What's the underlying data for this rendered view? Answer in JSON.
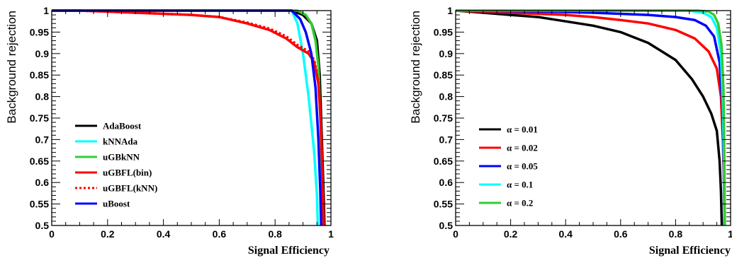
{
  "chart_data": [
    {
      "type": "line",
      "xlabel": "Signal Efficiency",
      "ylabel": "Background rejection",
      "xlim": [
        0,
        1
      ],
      "ylim": [
        0.5,
        1
      ],
      "x_ticks": [
        "0",
        "0.2",
        "0.4",
        "0.6",
        "0.8",
        "1"
      ],
      "y_ticks": [
        "0.5",
        "0.55",
        "0.6",
        "0.65",
        "0.7",
        "0.75",
        "0.8",
        "0.85",
        "0.9",
        "0.95",
        "1"
      ],
      "legend_position": "lower-left",
      "series": [
        {
          "name": "AdaBoost",
          "color": "#000000",
          "dash": false,
          "points": [
            [
              0,
              1
            ],
            [
              0.5,
              1
            ],
            [
              0.86,
              1
            ],
            [
              0.9,
              0.99
            ],
            [
              0.93,
              0.97
            ],
            [
              0.95,
              0.93
            ],
            [
              0.96,
              0.85
            ],
            [
              0.965,
              0.75
            ],
            [
              0.97,
              0.65
            ],
            [
              0.975,
              0.55
            ],
            [
              0.977,
              0.5
            ]
          ]
        },
        {
          "name": "kNNAda",
          "color": "#00ffff",
          "dash": false,
          "points": [
            [
              0,
              1
            ],
            [
              0.5,
              1
            ],
            [
              0.86,
              1
            ],
            [
              0.88,
              0.97
            ],
            [
              0.9,
              0.9
            ],
            [
              0.92,
              0.8
            ],
            [
              0.94,
              0.67
            ],
            [
              0.95,
              0.57
            ],
            [
              0.953,
              0.5
            ]
          ]
        },
        {
          "name": "uGBkNN",
          "color": "#33cc33",
          "dash": false,
          "points": [
            [
              0,
              1
            ],
            [
              0.5,
              1
            ],
            [
              0.88,
              1
            ],
            [
              0.91,
              0.99
            ],
            [
              0.93,
              0.97
            ],
            [
              0.945,
              0.93
            ],
            [
              0.955,
              0.87
            ],
            [
              0.962,
              0.75
            ],
            [
              0.968,
              0.62
            ],
            [
              0.972,
              0.5
            ]
          ]
        },
        {
          "name": "uGBFL(bin)",
          "color": "#ff0000",
          "dash": false,
          "points": [
            [
              0,
              1
            ],
            [
              0.1,
              1
            ],
            [
              0.3,
              0.995
            ],
            [
              0.5,
              0.99
            ],
            [
              0.6,
              0.985
            ],
            [
              0.7,
              0.97
            ],
            [
              0.78,
              0.955
            ],
            [
              0.84,
              0.935
            ],
            [
              0.88,
              0.915
            ],
            [
              0.92,
              0.9
            ],
            [
              0.94,
              0.88
            ],
            [
              0.955,
              0.83
            ],
            [
              0.963,
              0.75
            ],
            [
              0.968,
              0.65
            ],
            [
              0.972,
              0.55
            ],
            [
              0.974,
              0.5
            ]
          ]
        },
        {
          "name": "uGBFL(kNN)",
          "color": "#ff0000",
          "dash": true,
          "points": [
            [
              0,
              1
            ],
            [
              0.1,
              1
            ],
            [
              0.3,
              0.995
            ],
            [
              0.5,
              0.99
            ],
            [
              0.6,
              0.985
            ],
            [
              0.7,
              0.972
            ],
            [
              0.78,
              0.958
            ],
            [
              0.84,
              0.94
            ],
            [
              0.88,
              0.92
            ],
            [
              0.92,
              0.905
            ],
            [
              0.94,
              0.885
            ],
            [
              0.955,
              0.835
            ],
            [
              0.963,
              0.755
            ],
            [
              0.968,
              0.655
            ],
            [
              0.972,
              0.555
            ],
            [
              0.975,
              0.5
            ]
          ]
        },
        {
          "name": "uBoost",
          "color": "#0000ff",
          "dash": false,
          "points": [
            [
              0,
              1
            ],
            [
              0.5,
              1
            ],
            [
              0.86,
              1
            ],
            [
              0.89,
              0.98
            ],
            [
              0.91,
              0.95
            ],
            [
              0.93,
              0.9
            ],
            [
              0.945,
              0.82
            ],
            [
              0.955,
              0.7
            ],
            [
              0.962,
              0.58
            ],
            [
              0.965,
              0.5
            ]
          ]
        }
      ]
    },
    {
      "type": "line",
      "xlabel": "Signal Efficiency",
      "ylabel": "Background rejection",
      "xlim": [
        0,
        1
      ],
      "ylim": [
        0.5,
        1
      ],
      "x_ticks": [
        "0",
        "0.2",
        "0.4",
        "0.6",
        "0.8",
        "1"
      ],
      "y_ticks": [
        "0.5",
        "0.55",
        "0.6",
        "0.65",
        "0.7",
        "0.75",
        "0.8",
        "0.85",
        "0.9",
        "0.95",
        "1"
      ],
      "legend_position": "lower-left",
      "series": [
        {
          "name": "α = 0.01",
          "color": "#000000",
          "dash": false,
          "points": [
            [
              0,
              1
            ],
            [
              0.1,
              0.995
            ],
            [
              0.2,
              0.99
            ],
            [
              0.3,
              0.985
            ],
            [
              0.4,
              0.975
            ],
            [
              0.5,
              0.965
            ],
            [
              0.6,
              0.95
            ],
            [
              0.7,
              0.925
            ],
            [
              0.8,
              0.885
            ],
            [
              0.86,
              0.84
            ],
            [
              0.9,
              0.8
            ],
            [
              0.93,
              0.76
            ],
            [
              0.95,
              0.72
            ],
            [
              0.96,
              0.65
            ],
            [
              0.965,
              0.58
            ],
            [
              0.968,
              0.5
            ]
          ]
        },
        {
          "name": "α = 0.02",
          "color": "#ff0000",
          "dash": false,
          "points": [
            [
              0,
              1
            ],
            [
              0.2,
              0.995
            ],
            [
              0.4,
              0.99
            ],
            [
              0.5,
              0.985
            ],
            [
              0.6,
              0.978
            ],
            [
              0.7,
              0.97
            ],
            [
              0.8,
              0.955
            ],
            [
              0.87,
              0.935
            ],
            [
              0.92,
              0.905
            ],
            [
              0.95,
              0.865
            ],
            [
              0.965,
              0.8
            ],
            [
              0.972,
              0.7
            ],
            [
              0.976,
              0.6
            ],
            [
              0.978,
              0.5
            ]
          ]
        },
        {
          "name": "α = 0.05",
          "color": "#0000ff",
          "dash": false,
          "points": [
            [
              0,
              1
            ],
            [
              0.3,
              0.998
            ],
            [
              0.5,
              0.995
            ],
            [
              0.7,
              0.99
            ],
            [
              0.8,
              0.985
            ],
            [
              0.87,
              0.978
            ],
            [
              0.91,
              0.965
            ],
            [
              0.94,
              0.94
            ],
            [
              0.96,
              0.88
            ],
            [
              0.97,
              0.78
            ],
            [
              0.975,
              0.65
            ],
            [
              0.978,
              0.5
            ]
          ]
        },
        {
          "name": "α = 0.1",
          "color": "#00ffff",
          "dash": false,
          "points": [
            [
              0,
              1
            ],
            [
              0.5,
              1
            ],
            [
              0.85,
              1
            ],
            [
              0.9,
              0.995
            ],
            [
              0.93,
              0.985
            ],
            [
              0.95,
              0.96
            ],
            [
              0.965,
              0.9
            ],
            [
              0.972,
              0.78
            ],
            [
              0.976,
              0.65
            ],
            [
              0.978,
              0.5
            ]
          ]
        },
        {
          "name": "α = 0.2",
          "color": "#33cc33",
          "dash": false,
          "points": [
            [
              0,
              1
            ],
            [
              0.5,
              1
            ],
            [
              0.88,
              1
            ],
            [
              0.92,
              0.998
            ],
            [
              0.94,
              0.99
            ],
            [
              0.955,
              0.97
            ],
            [
              0.967,
              0.92
            ],
            [
              0.974,
              0.82
            ],
            [
              0.977,
              0.68
            ],
            [
              0.979,
              0.5
            ]
          ]
        }
      ]
    }
  ]
}
